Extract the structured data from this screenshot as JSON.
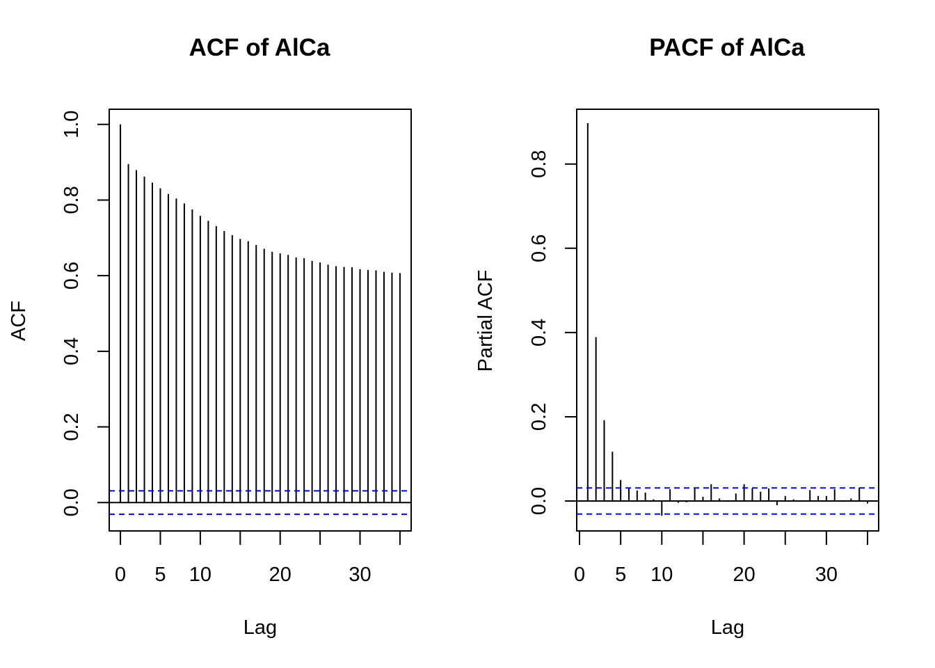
{
  "chart_data": [
    {
      "type": "bar",
      "title": "ACF of AlCa",
      "xlabel": "Lag",
      "ylabel": "ACF",
      "xlim": [
        -1.4,
        36.4
      ],
      "ylim": [
        -0.075,
        1.04
      ],
      "x_ticks": [
        0,
        5,
        10,
        20,
        30
      ],
      "x_tick_marks": [
        0,
        5,
        10,
        15,
        20,
        25,
        30,
        35
      ],
      "y_ticks": [
        "0.0",
        "0.2",
        "0.4",
        "0.6",
        "0.8",
        "1.0"
      ],
      "lags": [
        0,
        1,
        2,
        3,
        4,
        5,
        6,
        7,
        8,
        9,
        10,
        11,
        12,
        13,
        14,
        15,
        16,
        17,
        18,
        19,
        20,
        21,
        22,
        23,
        24,
        25,
        26,
        27,
        28,
        29,
        30,
        31,
        32,
        33,
        34,
        35
      ],
      "values": [
        1.0,
        0.895,
        0.879,
        0.862,
        0.846,
        0.831,
        0.816,
        0.804,
        0.791,
        0.775,
        0.758,
        0.745,
        0.731,
        0.718,
        0.707,
        0.697,
        0.691,
        0.681,
        0.671,
        0.663,
        0.659,
        0.655,
        0.648,
        0.646,
        0.639,
        0.635,
        0.629,
        0.625,
        0.623,
        0.622,
        0.617,
        0.615,
        0.614,
        0.61,
        0.608,
        0.607
      ],
      "confidence_band": 0.031,
      "band_color": "#0000ff",
      "grid": false
    },
    {
      "type": "bar",
      "title": "PACF of AlCa",
      "xlabel": "Lag",
      "ylabel": "Partial ACF",
      "xlim": [
        -0.34,
        36.35
      ],
      "ylim": [
        -0.071,
        0.93
      ],
      "x_ticks": [
        0,
        5,
        10,
        20,
        30
      ],
      "x_tick_marks": [
        0,
        5,
        10,
        15,
        20,
        25,
        30,
        35
      ],
      "y_ticks": [
        "0.0",
        "0.2",
        "0.4",
        "0.6",
        "0.8"
      ],
      "lags": [
        1,
        2,
        3,
        4,
        5,
        6,
        7,
        8,
        9,
        10,
        11,
        12,
        13,
        14,
        15,
        16,
        17,
        18,
        19,
        20,
        21,
        22,
        23,
        24,
        25,
        26,
        27,
        28,
        29,
        30,
        31,
        32,
        33,
        34,
        35
      ],
      "values": [
        0.897,
        0.389,
        0.192,
        0.117,
        0.05,
        0.03,
        0.025,
        0.02,
        0.004,
        -0.035,
        0.028,
        -0.004,
        -0.003,
        0.03,
        0.01,
        0.04,
        0.006,
        0.002,
        0.018,
        0.04,
        0.03,
        0.022,
        0.03,
        -0.01,
        0.012,
        0.004,
        -0.002,
        0.026,
        0.012,
        0.012,
        0.028,
        -0.002,
        0.006,
        0.032,
        -0.006
      ],
      "confidence_band": 0.031,
      "band_color": "#0000ff",
      "grid": false
    }
  ]
}
